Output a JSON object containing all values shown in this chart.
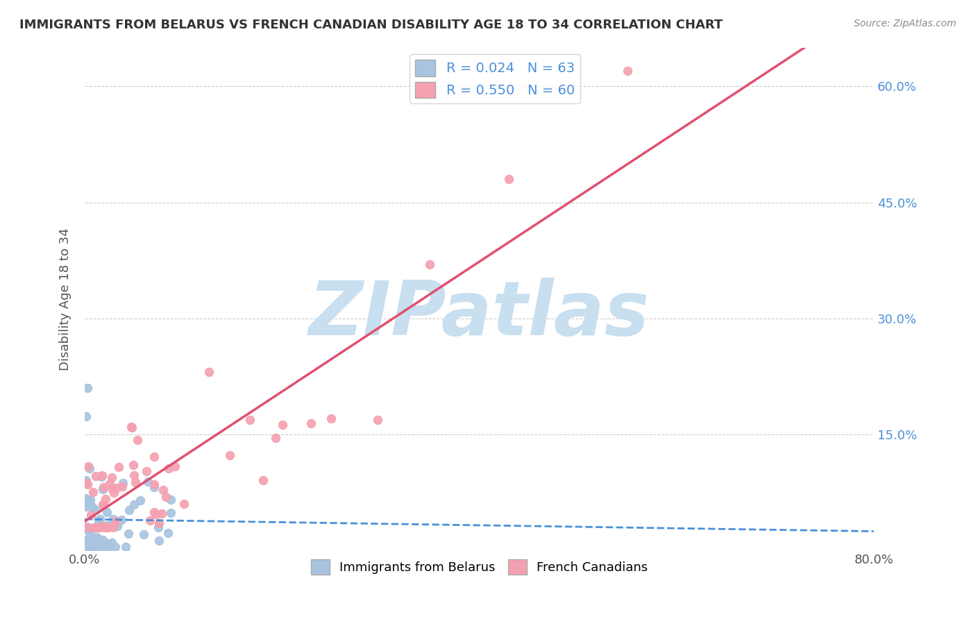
{
  "title": "IMMIGRANTS FROM BELARUS VS FRENCH CANADIAN DISABILITY AGE 18 TO 34 CORRELATION CHART",
  "source": "Source: ZipAtlas.com",
  "ylabel": "Disability Age 18 to 34",
  "xlim": [
    0.0,
    0.8
  ],
  "ylim": [
    0.0,
    0.65
  ],
  "ytick_positions": [
    0.0,
    0.15,
    0.3,
    0.45,
    0.6
  ],
  "ytick_labels": [
    "",
    "15.0%",
    "30.0%",
    "45.0%",
    "60.0%"
  ],
  "blue_R": 0.024,
  "blue_N": 63,
  "pink_R": 0.55,
  "pink_N": 60,
  "blue_color": "#a8c4e0",
  "pink_color": "#f4a0b0",
  "blue_line_color": "#4a90d9",
  "pink_line_color": "#e05070",
  "watermark": "ZIPatlas",
  "watermark_color": "#c8dff0",
  "legend_label_blue": "Immigrants from Belarus",
  "legend_label_pink": "French Canadians",
  "title_color": "#333333",
  "source_color": "#888888",
  "tick_color": "#4a90d9",
  "ylabel_color": "#555555"
}
